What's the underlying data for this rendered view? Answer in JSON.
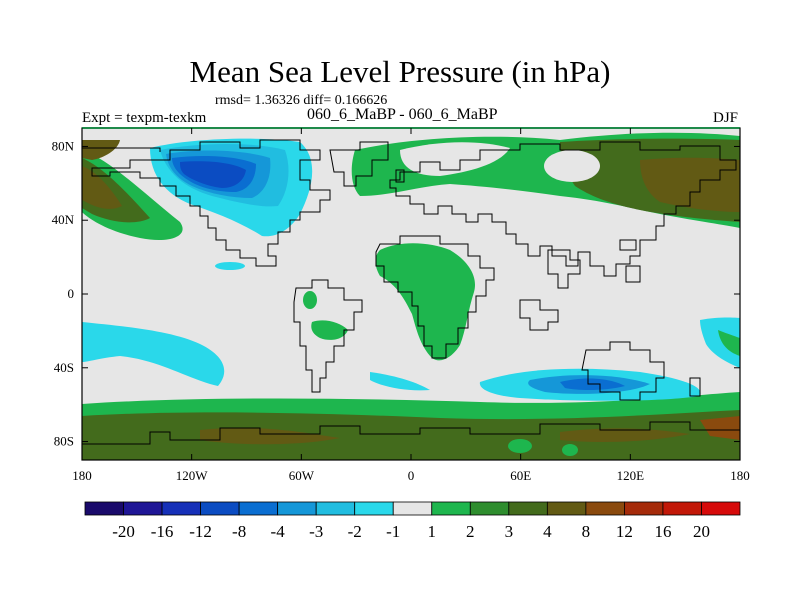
{
  "chart_data": {
    "type": "heatmap",
    "title": "Mean Sea Level Pressure (in hPa)",
    "stats_text": "rmsd= 1.36326 diff= 0.166626",
    "left_label": "Expt = texpm-texkm",
    "center_label": "060_6_MaBP - 060_6_MaBP",
    "right_label": "DJF",
    "x_ticks": [
      {
        "value": -180,
        "label": "180"
      },
      {
        "value": -120,
        "label": "120W"
      },
      {
        "value": -60,
        "label": "60W"
      },
      {
        "value": 0,
        "label": "0"
      },
      {
        "value": 60,
        "label": "60E"
      },
      {
        "value": 120,
        "label": "120E"
      },
      {
        "value": 180,
        "label": "180"
      }
    ],
    "y_ticks": [
      {
        "value": 80,
        "label": "80N"
      },
      {
        "value": 40,
        "label": "40N"
      },
      {
        "value": 0,
        "label": "0"
      },
      {
        "value": -40,
        "label": "40S"
      },
      {
        "value": -80,
        "label": "80S"
      }
    ],
    "xlim": [
      -180,
      180
    ],
    "ylim": [
      -90,
      90
    ],
    "colorbar": {
      "labels": [
        "-20",
        "-16",
        "-12",
        "-8",
        "-4",
        "-3",
        "-2",
        "-1",
        "1",
        "2",
        "3",
        "4",
        "8",
        "12",
        "16",
        "20"
      ],
      "colors": [
        "#1a0a6b",
        "#1f1696",
        "#1630b8",
        "#0b4cc2",
        "#0a6ed1",
        "#1597d8",
        "#21bde0",
        "#2ad8ea",
        "#e6e6e6",
        "#1eb64e",
        "#2e8d2e",
        "#436b1c",
        "#625a14",
        "#8a4a0e",
        "#a52b0a",
        "#c21808",
        "#d60a0a"
      ]
    },
    "regions": [
      {
        "name": "north-america-low",
        "color": "#0b4cc2",
        "center": [
          -110,
          65
        ]
      },
      {
        "name": "south-pacific-low",
        "color": "#2ad8ea",
        "center": [
          -130,
          -35
        ]
      },
      {
        "name": "southern-indian-low",
        "color": "#0a6ed1",
        "center": [
          90,
          -45
        ]
      },
      {
        "name": "siberian-high",
        "color": "#625a14",
        "center": [
          150,
          60
        ]
      },
      {
        "name": "aleutian-high",
        "color": "#625a14",
        "center": [
          -170,
          55
        ]
      },
      {
        "name": "southern-ocean-high",
        "color": "#436b1c",
        "center": [
          0,
          -78
        ]
      },
      {
        "name": "africa-high",
        "color": "#1eb64e",
        "center": [
          20,
          10
        ]
      }
    ]
  }
}
